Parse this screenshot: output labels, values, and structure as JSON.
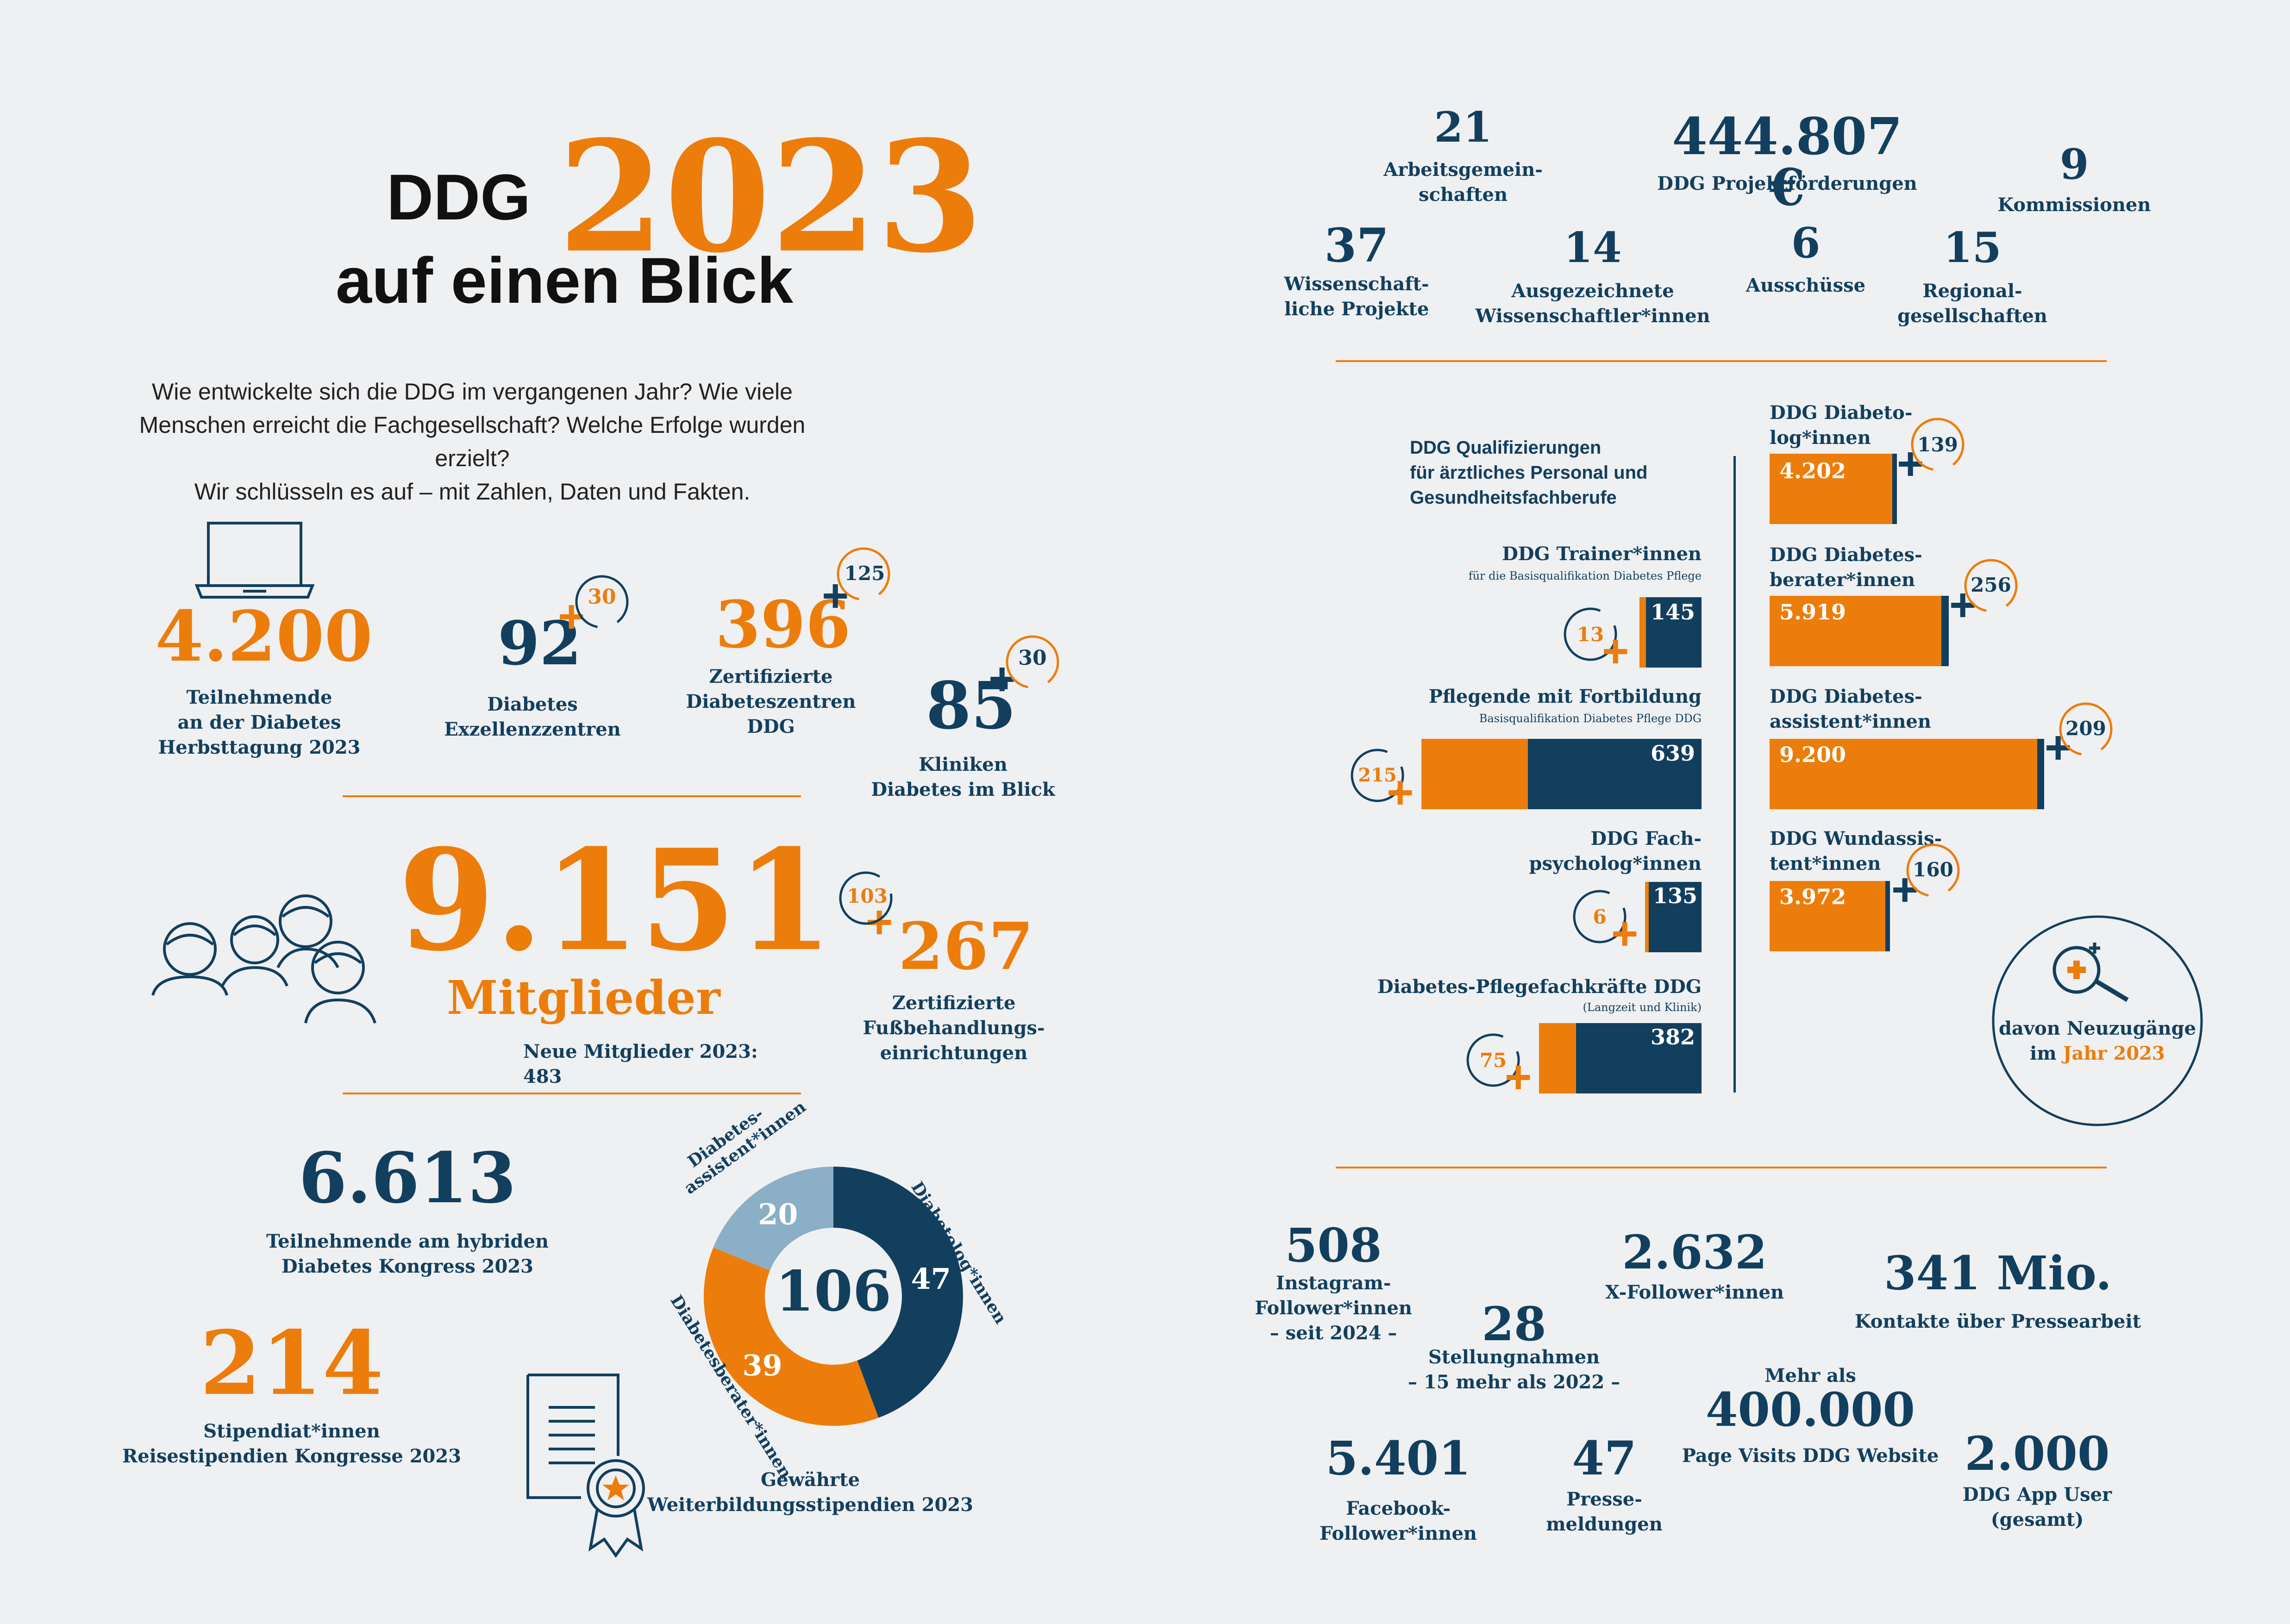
{
  "header": {
    "title_prefix": "DDG",
    "title_year": "2023",
    "title_sub": "auf einen Blick",
    "intro": [
      "Wie entwickelte sich die DDG im vergangenen Jahr? Wie viele",
      "Menschen erreicht die Fachgesellschaft? Welche Erfolge wurden erzielt?",
      "Wir schlüsseln es auf – mit Zahlen, Daten und Fakten."
    ]
  },
  "left": {
    "herbsttagung": {
      "value": "4.200",
      "label": [
        "Teilnehmende",
        "an der Diabetes",
        "Herbsttagung 2023"
      ]
    },
    "exzellenz": {
      "value": "92",
      "plus": "30",
      "label": [
        "Diabetes",
        "Exzellenzzentren"
      ]
    },
    "zertifizierte": {
      "value": "396",
      "plus": "125",
      "label": [
        "Zertifizierte",
        "Diabeteszentren",
        "DDG"
      ]
    },
    "kliniken": {
      "value": "85",
      "plus": "30",
      "label": [
        "Kliniken",
        "Diabetes im Blick"
      ]
    },
    "mitglieder": {
      "value": "9.151",
      "label": "Mitglieder",
      "neu": "Neue Mitglieder 2023: 483"
    },
    "fuss": {
      "value": "267",
      "plus": "103",
      "label": [
        "Zertifizierte",
        "Fußbehandlungs-",
        "einrichtungen"
      ]
    },
    "kongress": {
      "value": "6.613",
      "label": [
        "Teilnehmende am hybriden",
        "Diabetes Kongress 2023"
      ]
    },
    "stipendiaten": {
      "value": "214",
      "label": [
        "Stipendiat*innen",
        "Reisestipendien Kongresse 2023"
      ]
    },
    "stipendien_label": [
      "Gewährte",
      "Weiterbildungsstipendien 2023"
    ]
  },
  "chart_data": {
    "type": "pie",
    "total": "106",
    "slices": [
      {
        "name": "Diabetolog*innen",
        "value": 47,
        "color": "#123f5e"
      },
      {
        "name": "Diabetesberater*innen",
        "value": 39,
        "color": "#ec7d0b"
      },
      {
        "name": "Diabetes-assistent*innen",
        "value": 20,
        "color": "#8aafc6"
      }
    ],
    "labels": {
      "assistent": [
        "Diabetes-",
        "assistent*innen"
      ],
      "diabetolog": "Diabetolog*innen",
      "berater": "Diabetesberater*innen"
    }
  },
  "top_right": {
    "ag": {
      "value": "21",
      "label": [
        "Arbeitsgemein-",
        "schaften"
      ]
    },
    "projekt": {
      "value": "444.807 €",
      "label": "DDG Projektförderungen"
    },
    "kommissionen": {
      "value": "9",
      "label": "Kommissionen"
    },
    "wiss_projekte": {
      "value": "37",
      "label": [
        "Wissenschaft-",
        "liche Projekte"
      ]
    },
    "ausgezeichnete": {
      "value": "14",
      "label": [
        "Ausgezeichnete",
        "Wissenschaftler*innen"
      ]
    },
    "ausschuesse": {
      "value": "6",
      "label": "Ausschüsse"
    },
    "regional": {
      "value": "15",
      "label": [
        "Regional-",
        "gesellschaften"
      ]
    }
  },
  "qualifizierungen": {
    "heading": [
      "DDG Qualifizierungen",
      "für ärztliches Personal und",
      "Gesundheitsfachberufe"
    ],
    "left_items": [
      {
        "title": "DDG Trainer*innen",
        "sub": "für die Basisqualifikation Diabetes Pflege",
        "value": "145",
        "plus": "13"
      },
      {
        "title": "Pflegende mit Fortbildung",
        "sub": "Basisqualifikation Diabetes Pflege DDG",
        "value": "639",
        "plus": "215"
      },
      {
        "title": [
          "DDG Fach-",
          "psycholog*innen"
        ],
        "sub": "",
        "value": "135",
        "plus": "6"
      },
      {
        "title": "Diabetes-Pflegefachkräfte DDG",
        "sub": "(Langzeit und Klinik)",
        "value": "382",
        "plus": "75"
      }
    ],
    "right_items": [
      {
        "title": [
          "DDG Diabeto-",
          "log*innen"
        ],
        "value": "4.202",
        "plus": "139"
      },
      {
        "title": [
          "DDG Diabetes-",
          "berater*innen"
        ],
        "value": "5.919",
        "plus": "256"
      },
      {
        "title": [
          "DDG Diabetes-",
          "assistent*innen"
        ],
        "value": "9.200",
        "plus": "209"
      },
      {
        "title": [
          "DDG Wundassis-",
          "tent*innen"
        ],
        "value": "3.972",
        "plus": "160"
      }
    ],
    "legend": [
      "davon Neuzugänge",
      "im",
      "Jahr 2023"
    ]
  },
  "media": {
    "instagram": {
      "value": "508",
      "label": [
        "Instagram-",
        "Follower*innen",
        "– seit 2024 –"
      ]
    },
    "x": {
      "value": "2.632",
      "label": "X-Follower*innen"
    },
    "kontakte": {
      "value": "341 Mio.",
      "label": "Kontakte über Pressearbeit"
    },
    "stellung": {
      "value": "28",
      "label": [
        "Stellungnahmen",
        "– 15 mehr als 2022 –"
      ]
    },
    "visits": {
      "pre": "Mehr als",
      "value": "400.000",
      "label": "Page Visits DDG Website"
    },
    "facebook": {
      "value": "5.401",
      "label": [
        "Facebook-",
        "Follower*innen"
      ]
    },
    "presse": {
      "value": "47",
      "label": [
        "Presse-",
        "meldungen"
      ]
    },
    "app": {
      "value": "2.000",
      "label": [
        "DDG App User",
        "(gesamt)"
      ]
    }
  },
  "colors": {
    "navy": "#123f5e",
    "orange": "#ec7d0b",
    "lightblue": "#8aafc6",
    "background": "#eff0f2"
  }
}
